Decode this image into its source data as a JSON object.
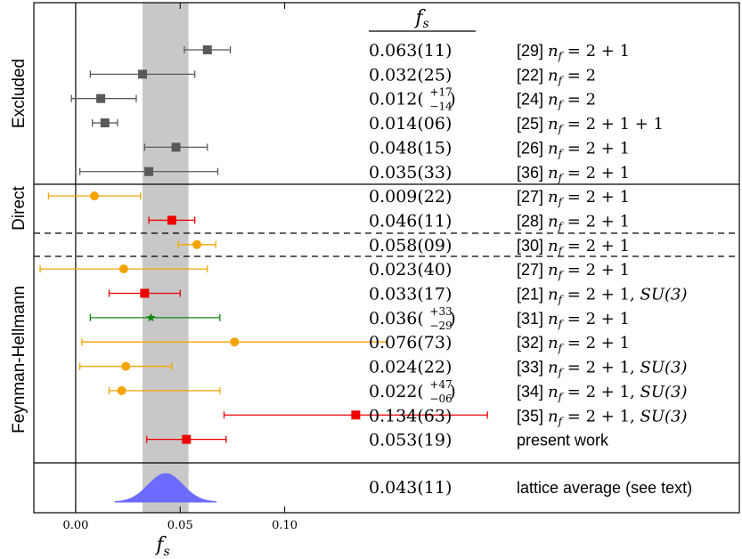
{
  "chart_data": {
    "type": "scatter",
    "xlabel": "f_s",
    "column_header": "f_s",
    "xlim": [
      -0.02,
      0.3175
    ],
    "xticks": [
      0.0,
      0.05,
      0.1
    ],
    "xtick_labels": [
      "0.00",
      "0.05",
      "0.10"
    ],
    "grid": false,
    "band": {
      "low": 0.032,
      "high": 0.054,
      "color": "#c8c8c8"
    },
    "groups": [
      {
        "label": "Excluded",
        "rows": [
          0,
          5
        ]
      },
      {
        "label": "Direct",
        "rows": [
          6,
          8
        ]
      },
      {
        "label": "Feynman-Hellmann",
        "rows": [
          9,
          16
        ]
      }
    ],
    "dashed_after_rows": [
      7,
      8
    ],
    "points": [
      {
        "value": 0.063,
        "err_low": 0.011,
        "err_high": 0.011,
        "value_text": "0.063(11)",
        "ref": "[29]",
        "label": "n_f = 2+1",
        "marker": "square",
        "color": "#595959"
      },
      {
        "value": 0.032,
        "err_low": 0.025,
        "err_high": 0.025,
        "value_text": "0.032(25)",
        "ref": "[22]",
        "label": "n_f = 2",
        "marker": "square",
        "color": "#595959"
      },
      {
        "value": 0.012,
        "err_low": 0.014,
        "err_high": 0.017,
        "value_text": "0.012",
        "sup": "+17",
        "sub": "−14",
        "ref": "[24]",
        "label": "n_f = 2",
        "marker": "square",
        "color": "#595959"
      },
      {
        "value": 0.014,
        "err_low": 0.006,
        "err_high": 0.006,
        "value_text": "0.014(06)",
        "ref": "[25]",
        "label": "n_f = 2+1+1",
        "marker": "square",
        "color": "#595959"
      },
      {
        "value": 0.048,
        "err_low": 0.015,
        "err_high": 0.015,
        "value_text": "0.048(15)",
        "ref": "[26]",
        "label": "n_f = 2+1",
        "marker": "square",
        "color": "#595959"
      },
      {
        "value": 0.035,
        "err_low": 0.033,
        "err_high": 0.033,
        "value_text": "0.035(33)",
        "ref": "[36]",
        "label": "n_f = 2+1",
        "marker": "square",
        "color": "#595959"
      },
      {
        "value": 0.009,
        "err_low": 0.022,
        "err_high": 0.022,
        "value_text": "0.009(22)",
        "ref": "[27]",
        "label": "n_f = 2+1",
        "marker": "circle",
        "color": "#f5a300"
      },
      {
        "value": 0.046,
        "err_low": 0.011,
        "err_high": 0.011,
        "value_text": "0.046(11)",
        "ref": "[28]",
        "label": "n_f = 2+1",
        "marker": "square",
        "color": "#ee0000"
      },
      {
        "value": 0.058,
        "err_low": 0.009,
        "err_high": 0.009,
        "value_text": "0.058(09)",
        "ref": "[30]",
        "label": "n_f = 2+1",
        "marker": "circle",
        "color": "#f5a300"
      },
      {
        "value": 0.023,
        "err_low": 0.04,
        "err_high": 0.04,
        "value_text": "0.023(40)",
        "ref": "[27]",
        "label": "n_f = 2+1",
        "marker": "circle",
        "color": "#f5a300"
      },
      {
        "value": 0.033,
        "err_low": 0.017,
        "err_high": 0.017,
        "value_text": "0.033(17)",
        "ref": "[21]",
        "label": "n_f = 2+1, SU(3)",
        "marker": "square",
        "color": "#ee0000"
      },
      {
        "value": 0.036,
        "err_low": 0.029,
        "err_high": 0.033,
        "value_text": "0.036",
        "sup": "+33",
        "sub": "−29",
        "ref": "[31]",
        "label": "n_f = 2+1",
        "marker": "star",
        "color": "#118811"
      },
      {
        "value": 0.076,
        "err_low": 0.073,
        "err_high": 0.073,
        "value_text": "0.076(73)",
        "ref": "[32]",
        "label": "n_f = 2+1",
        "marker": "circle",
        "color": "#f5a300"
      },
      {
        "value": 0.024,
        "err_low": 0.022,
        "err_high": 0.022,
        "value_text": "0.024(22)",
        "ref": "[33]",
        "label": "n_f = 2+1, SU(3)",
        "marker": "circle",
        "color": "#f5a300"
      },
      {
        "value": 0.022,
        "err_low": 0.006,
        "err_high": 0.047,
        "value_text": "0.022",
        "sup": "+47",
        "sub": "−06",
        "ref": "[34]",
        "label": "n_f = 2+1, SU(3)",
        "marker": "circle",
        "color": "#f5a300"
      },
      {
        "value": 0.134,
        "err_low": 0.063,
        "err_high": 0.063,
        "value_text": "0.134(63)",
        "ref": "[35]",
        "label": "n_f = 2+1, SU(3)",
        "marker": "square",
        "color": "#ee0000"
      },
      {
        "value": 0.053,
        "err_low": 0.019,
        "err_high": 0.019,
        "value_text": "0.053(19)",
        "ref": "",
        "label": "present work",
        "marker": "square",
        "color": "#ee0000"
      }
    ],
    "average": {
      "value_text": "0.043(11)",
      "label": "lattice average (see text)",
      "mean": 0.043,
      "sigma": 0.011,
      "color": "#6b6bff"
    }
  }
}
